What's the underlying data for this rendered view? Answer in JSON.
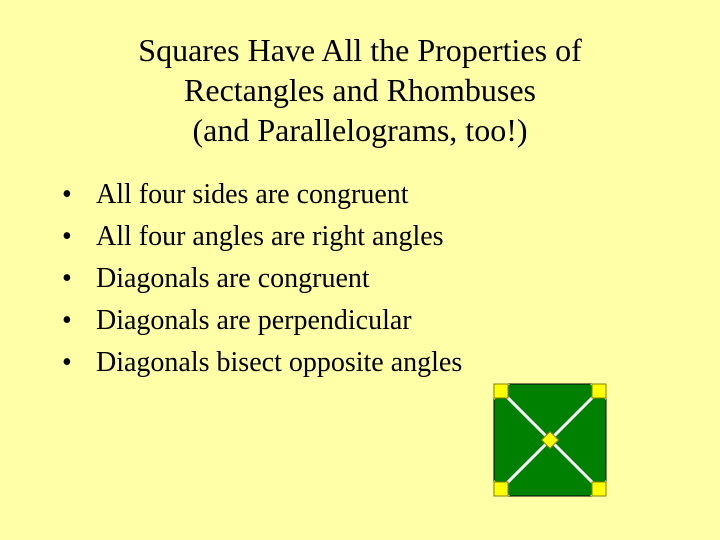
{
  "title": {
    "line1": "Squares Have All the Properties of",
    "line2": "Rectangles and Rhombuses",
    "line3": "(and Parallelograms, too!)"
  },
  "bullets": [
    "All four sides are congruent",
    "All four angles are right angles",
    "Diagonals are congruent",
    "Diagonals are perpendicular",
    "Diagonals bisect opposite angles"
  ],
  "diagram": {
    "type": "square-with-diagonals",
    "size": 120,
    "background_color": "#ffffa8",
    "square_fill": "#008000",
    "square_stroke": "#000000",
    "square_stroke_width": 1,
    "diagonal_color": "#ffffff",
    "diagonal_width": 3,
    "triangle_fill": "#ffffa8",
    "center_square_fill": "#ffff00",
    "center_square_stroke": "#808000",
    "corner_square_fill": "#ffff00",
    "corner_square_stroke": "#808000",
    "corner_square_size": 14,
    "center_square_size": 12,
    "triangle_leg": 16
  }
}
